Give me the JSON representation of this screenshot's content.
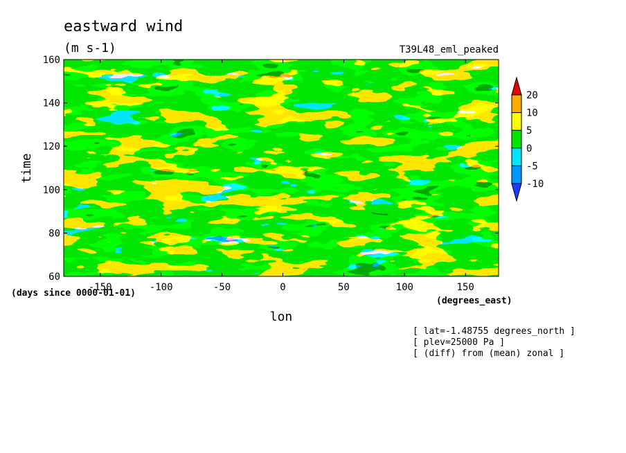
{
  "chart_data": {
    "type": "heatmap",
    "title": "eastward wind",
    "subtitle": "(m s-1)",
    "run_label": "T39L48_eml_peaked",
    "xlabel": "lon",
    "xunit": "(degrees_east)",
    "ylabel": "time",
    "yunit": "(days since 0000-01-01)",
    "xlim": [
      -180,
      177.1875
    ],
    "ylim": [
      60,
      160
    ],
    "x_ticks": [
      -150,
      -100,
      -50,
      0,
      50,
      100,
      150
    ],
    "x_tick_labels": [
      "-150",
      "-100",
      "-50",
      "0",
      "50",
      "100",
      "150"
    ],
    "y_ticks": [
      60,
      80,
      100,
      120,
      140,
      160
    ],
    "y_tick_labels": [
      "60",
      "80",
      "100",
      "120",
      "140",
      "160"
    ],
    "contour_levels": [
      -10,
      -5,
      0,
      5,
      10,
      20
    ],
    "colorbar_labels": [
      "20",
      "10",
      "5",
      "0",
      "-5",
      "-10"
    ],
    "colors": [
      "#1e3cff",
      "#0096ff",
      "#00e6ff",
      "#00e600",
      "#ffff00",
      "#ffaa00",
      "#e60000"
    ],
    "annotations": [
      "[ lat=-1.48755 degrees_north ]",
      "[ plev=25000 Pa ]",
      "[ (diff) from (mean) zonal ]"
    ]
  }
}
